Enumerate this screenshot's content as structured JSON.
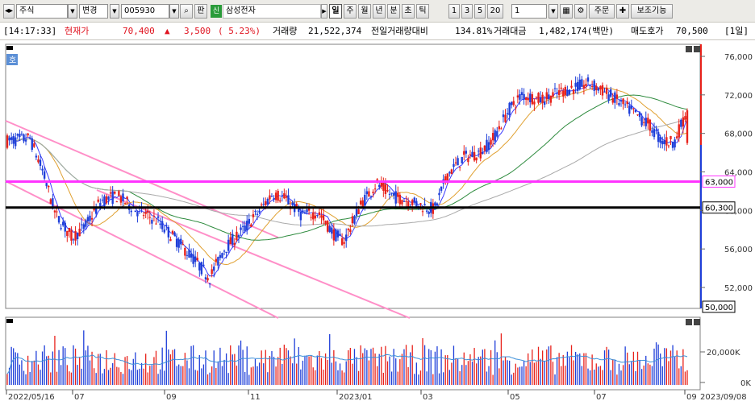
{
  "toolbar": {
    "market": "주식",
    "change_label": "변경",
    "code": "005930",
    "search_icon": "magnifier-icon",
    "pan_label": "판",
    "credit_tag": "신",
    "stock_name": "삼성전자",
    "periods": [
      "일",
      "주",
      "월",
      "년",
      "분",
      "초",
      "틱"
    ],
    "active_period": "일",
    "intervals": [
      "1",
      "3",
      "5",
      "20"
    ],
    "interval_value": "1",
    "order_label": "주문",
    "aux_label": "보조기능"
  },
  "info": {
    "time": "[14:17:33]",
    "price_label": "현재가",
    "price": "70,400",
    "arrow": "▲",
    "change": "3,500",
    "change_pct": "( 5.23%)",
    "volume_label": "거래량",
    "volume": "21,522,374",
    "ratio_label": "전일거래량대비",
    "ratio": "134.81%",
    "amount_label": "거래대금",
    "amount": "1,482,174(백만)",
    "ask_label": "매도호가",
    "ask": "70,500",
    "period_tag": "[1일]"
  },
  "price_axis": {
    "ticks": [
      "76,000",
      "72,000",
      "68,000",
      "64,000",
      "60,000",
      "56,000",
      "52,000"
    ],
    "markers": [
      "63,000",
      "60,300",
      "50,000"
    ]
  },
  "volume_axis": {
    "ticks": [
      "20,000K",
      "0K"
    ]
  },
  "date_axis": {
    "labels": [
      "2022/05/16",
      "07",
      "09",
      "11",
      "2023/01",
      "03",
      "05",
      "07",
      "09",
      "2023/09/08"
    ]
  },
  "corner_label": "호",
  "colors": {
    "up": "#e8221b",
    "down": "#1f3fd9",
    "line_63000": "#ff33ff",
    "line_60300": "#000000",
    "channel": "#ff8fc8"
  },
  "chart_data": {
    "type": "candlestick",
    "horizontal_lines": [
      63000,
      60300
    ],
    "last_close": 70400,
    "ylim": [
      49000,
      77000
    ]
  }
}
